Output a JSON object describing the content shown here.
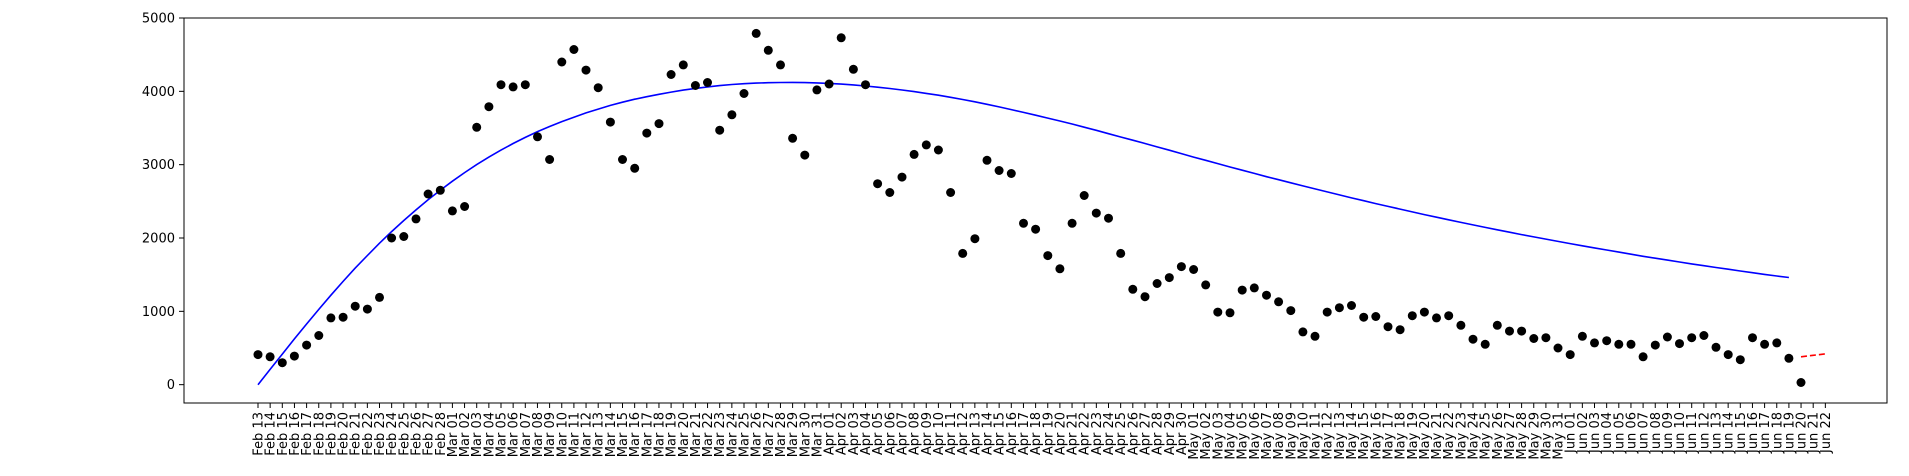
{
  "chart_data": {
    "type": "scatter",
    "title": "",
    "xlabel": "",
    "ylabel": "",
    "ylim": [
      -250,
      5000
    ],
    "yticks": [
      0,
      1000,
      2000,
      3000,
      4000,
      5000
    ],
    "grid": false,
    "colors": {
      "points": "#000000",
      "fit": "#0000ff",
      "forecast": "#ff0000",
      "axes": "#000000"
    },
    "categories": [
      "Feb 13",
      "Feb 14",
      "Feb 15",
      "Feb 16",
      "Feb 17",
      "Feb 18",
      "Feb 19",
      "Feb 20",
      "Feb 21",
      "Feb 22",
      "Feb 23",
      "Feb 24",
      "Feb 25",
      "Feb 26",
      "Feb 27",
      "Feb 28",
      "Mar 01",
      "Mar 02",
      "Mar 03",
      "Mar 04",
      "Mar 05",
      "Mar 06",
      "Mar 07",
      "Mar 08",
      "Mar 09",
      "Mar 10",
      "Mar 11",
      "Mar 12",
      "Mar 13",
      "Mar 14",
      "Mar 15",
      "Mar 16",
      "Mar 17",
      "Mar 18",
      "Mar 19",
      "Mar 20",
      "Mar 21",
      "Mar 22",
      "Mar 23",
      "Mar 24",
      "Mar 25",
      "Mar 26",
      "Mar 27",
      "Mar 28",
      "Mar 29",
      "Mar 30",
      "Mar 31",
      "Apr 01",
      "Apr 02",
      "Apr 03",
      "Apr 04",
      "Apr 05",
      "Apr 06",
      "Apr 07",
      "Apr 08",
      "Apr 09",
      "Apr 10",
      "Apr 11",
      "Apr 12",
      "Apr 13",
      "Apr 14",
      "Apr 15",
      "Apr 16",
      "Apr 17",
      "Apr 18",
      "Apr 19",
      "Apr 20",
      "Apr 21",
      "Apr 22",
      "Apr 23",
      "Apr 24",
      "Apr 25",
      "Apr 26",
      "Apr 27",
      "Apr 28",
      "Apr 29",
      "Apr 30",
      "May 01",
      "May 02",
      "May 03",
      "May 04",
      "May 05",
      "May 06",
      "May 07",
      "May 08",
      "May 09",
      "May 10",
      "May 11",
      "May 12",
      "May 13",
      "May 14",
      "May 15",
      "May 16",
      "May 17",
      "May 18",
      "May 19",
      "May 20",
      "May 21",
      "May 22",
      "May 23",
      "May 24",
      "May 25",
      "May 26",
      "May 27",
      "May 28",
      "May 29",
      "May 30",
      "May 31",
      "Jun 01",
      "Jun 02",
      "Jun 03",
      "Jun 04",
      "Jun 05",
      "Jun 06",
      "Jun 07",
      "Jun 08",
      "Jun 09",
      "Jun 10",
      "Jun 11",
      "Jun 12",
      "Jun 13",
      "Jun 14",
      "Jun 15",
      "Jun 16",
      "Jun 17",
      "Jun 18",
      "Jun 19",
      "Jun 20",
      "Jun 21",
      "Jun 22"
    ],
    "points": [
      410,
      380,
      300,
      390,
      540,
      670,
      910,
      920,
      1070,
      1030,
      1190,
      2000,
      2020,
      2260,
      2600,
      2650,
      2370,
      2430,
      3510,
      3790,
      4090,
      4060,
      4090,
      3380,
      3070,
      4400,
      4570,
      4290,
      4050,
      3580,
      3070,
      2950,
      3430,
      3560,
      4230,
      4360,
      4080,
      4120,
      3470,
      3680,
      3970,
      4790,
      4560,
      4360,
      3360,
      3130,
      4020,
      4100,
      4730,
      4300,
      4090,
      2740,
      2620,
      2830,
      3140,
      3270,
      3200,
      2620,
      1790,
      1990,
      3060,
      2920,
      2880,
      2200,
      2120,
      1760,
      1580,
      2200,
      2580,
      2340,
      2270,
      1790,
      1300,
      1200,
      1380,
      1460,
      1610,
      1570,
      1360,
      990,
      980,
      1290,
      1320,
      1220,
      1130,
      1010,
      720,
      660,
      990,
      1050,
      1080,
      920,
      930,
      790,
      750,
      940,
      990,
      910,
      940,
      810,
      620,
      550,
      810,
      730,
      730,
      630,
      640,
      500,
      410,
      660,
      570,
      600,
      550,
      550,
      380,
      540,
      650,
      560,
      640,
      670,
      510,
      410,
      340,
      640,
      550,
      570,
      360,
      30
    ],
    "fit": [
      0,
      154,
      309,
      462,
      613,
      760,
      904,
      1043,
      1177,
      1305,
      1429,
      1546,
      1658,
      1765,
      1867,
      1964,
      2055,
      2142,
      2223,
      2299,
      2369,
      2436,
      2498,
      2556,
      2608,
      2657,
      2702,
      2745,
      2784,
      2821,
      2853,
      2883,
      2909,
      2933,
      2955,
      2975,
      2993,
      3008,
      3021,
      3032,
      3040,
      3046,
      3050,
      3052,
      3053,
      3051,
      3048,
      3043,
      3036,
      3028,
      3017,
      3005,
      2992,
      2976,
      2960,
      2942,
      2924,
      2903,
      2880,
      2857,
      2832,
      2806,
      2778,
      2750,
      2722,
      2693,
      2663,
      2633,
      2601,
      2569,
      2535,
      2502,
      2469,
      2436,
      2402,
      2368,
      2334,
      2299,
      2266,
      2233,
      2199,
      2166,
      2134,
      2101,
      2070,
      2039,
      2008,
      1977,
      1947,
      1917,
      1887,
      1858,
      1829,
      1801,
      1773,
      1745,
      1718,
      1692,
      1665,
      1639,
      1614,
      1589,
      1564,
      1540,
      1516,
      1493,
      1470,
      1447,
      1425,
      1403,
      1381,
      1360,
      1339,
      1318,
      1297,
      1277,
      1258,
      1239,
      1220,
      1202,
      1184,
      1166,
      1148,
      1131,
      1114,
      1098,
      1082
    ],
    "fit_scale": 1.35,
    "forecast": [
      380,
      400,
      420
    ]
  }
}
